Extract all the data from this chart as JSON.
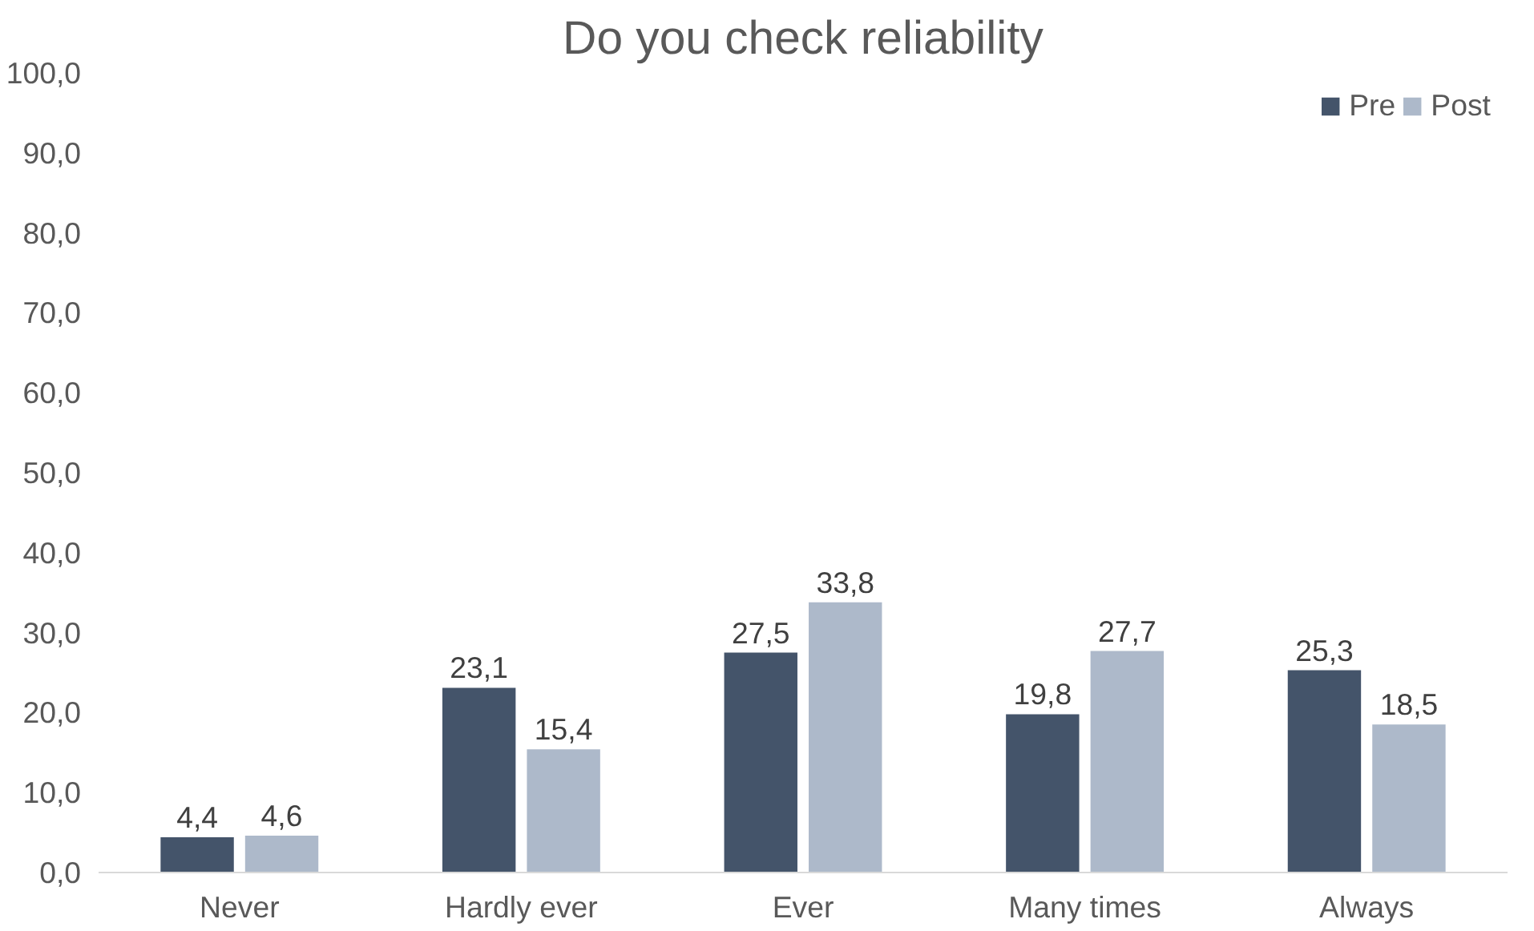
{
  "chart_data": {
    "type": "bar",
    "title": "Do you check reliability",
    "categories": [
      "Never",
      "Hardly ever",
      "Ever",
      "Many times",
      "Always"
    ],
    "series": [
      {
        "name": "Pre",
        "color": "#44546a",
        "values": [
          4.4,
          23.1,
          27.5,
          19.8,
          25.3
        ],
        "value_labels": [
          "4,4",
          "23,1",
          "27,5",
          "19,8",
          "25,3"
        ]
      },
      {
        "name": "Post",
        "color": "#adb9ca",
        "values": [
          4.6,
          15.4,
          33.8,
          27.7,
          18.5
        ],
        "value_labels": [
          "4,6",
          "15,4",
          "33,8",
          "27,7",
          "18,5"
        ]
      }
    ],
    "ylim": [
      0,
      100
    ],
    "yticks": [
      {
        "value": 0,
        "label": "0,0"
      },
      {
        "value": 10,
        "label": "10,0"
      },
      {
        "value": 20,
        "label": "20,0"
      },
      {
        "value": 30,
        "label": "30,0"
      },
      {
        "value": 40,
        "label": "40,0"
      },
      {
        "value": 50,
        "label": "50,0"
      },
      {
        "value": 60,
        "label": "60,0"
      },
      {
        "value": 70,
        "label": "70,0"
      },
      {
        "value": 80,
        "label": "80,0"
      },
      {
        "value": 90,
        "label": "90,0"
      },
      {
        "value": 100,
        "label": "100,0"
      }
    ],
    "grid": false,
    "legend": "top right"
  }
}
